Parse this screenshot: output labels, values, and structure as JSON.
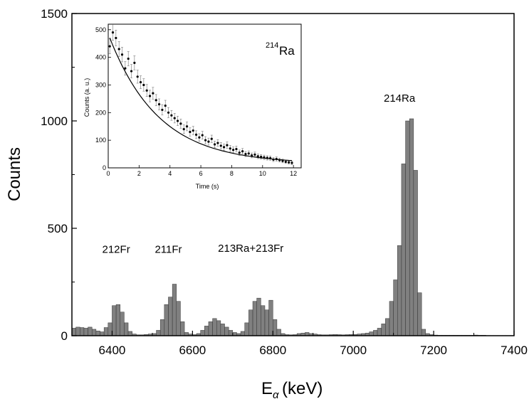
{
  "chart_data": [
    {
      "type": "bar",
      "title": "",
      "xlabel": "E",
      "xlabel_sub": "α",
      "xlabel_unit": "(keV)",
      "ylabel": "Counts",
      "xlim": [
        6300,
        7400
      ],
      "ylim": [
        0,
        1500
      ],
      "x_ticks": [
        "6400",
        "6600",
        "6800",
        "7000",
        "7200",
        "7400"
      ],
      "y_ticks": [
        "0",
        "500",
        "1000",
        "1500"
      ],
      "bin_width_keV": 10,
      "x": [
        6300,
        6310,
        6320,
        6330,
        6340,
        6350,
        6360,
        6370,
        6380,
        6390,
        6400,
        6410,
        6420,
        6430,
        6440,
        6450,
        6460,
        6470,
        6480,
        6490,
        6500,
        6510,
        6520,
        6530,
        6540,
        6550,
        6560,
        6570,
        6580,
        6590,
        6600,
        6610,
        6620,
        6630,
        6640,
        6650,
        6660,
        6670,
        6680,
        6690,
        6700,
        6710,
        6720,
        6730,
        6740,
        6750,
        6760,
        6770,
        6780,
        6790,
        6800,
        6810,
        6820,
        6830,
        6840,
        6850,
        6860,
        6870,
        6880,
        6890,
        6900,
        6910,
        6920,
        6930,
        6940,
        6950,
        6960,
        6970,
        6980,
        6990,
        7000,
        7010,
        7020,
        7030,
        7040,
        7050,
        7060,
        7070,
        7080,
        7090,
        7100,
        7110,
        7120,
        7130,
        7140,
        7150,
        7160,
        7170,
        7180,
        7190,
        7200,
        7210,
        7220,
        7230,
        7240,
        7250,
        7260,
        7270,
        7280,
        7290,
        7300,
        7310,
        7320,
        7330,
        7340,
        7350,
        7360,
        7370,
        7380,
        7390
      ],
      "values": [
        35,
        40,
        38,
        35,
        40,
        30,
        22,
        18,
        38,
        60,
        140,
        145,
        110,
        60,
        20,
        8,
        4,
        4,
        6,
        8,
        10,
        25,
        75,
        145,
        180,
        240,
        160,
        65,
        15,
        8,
        5,
        10,
        25,
        45,
        65,
        80,
        70,
        55,
        40,
        25,
        15,
        10,
        20,
        60,
        120,
        160,
        175,
        140,
        120,
        165,
        75,
        30,
        10,
        5,
        4,
        5,
        10,
        12,
        15,
        10,
        8,
        5,
        4,
        4,
        5,
        6,
        5,
        4,
        5,
        6,
        6,
        8,
        10,
        12,
        18,
        25,
        35,
        55,
        80,
        160,
        260,
        420,
        800,
        1000,
        1010,
        770,
        200,
        30,
        10,
        5,
        3,
        2,
        2,
        2,
        2,
        2,
        2,
        2,
        2,
        2,
        3,
        2,
        2,
        1,
        1,
        1,
        1,
        1,
        1,
        1
      ],
      "annotations": [
        {
          "text": "212Fr",
          "x": 6410,
          "y": 385
        },
        {
          "text": "211Fr",
          "x": 6540,
          "y": 385
        },
        {
          "text": "213Ra+213Fr",
          "x": 6745,
          "y": 390
        },
        {
          "text": "214Ra",
          "x": 7115,
          "y": 1090
        }
      ]
    },
    {
      "type": "scatter",
      "title_sup": "214",
      "title": "Ra",
      "xlabel": "Time (s)",
      "ylabel": "Counts (a. u.)",
      "xlim": [
        0,
        12.5
      ],
      "ylim": [
        0,
        520
      ],
      "x_ticks": [
        "0",
        "2",
        "4",
        "6",
        "8",
        "10",
        "12"
      ],
      "y_ticks": [
        "0",
        "100",
        "200",
        "300",
        "400",
        "500"
      ],
      "x": [
        0.1,
        0.3,
        0.5,
        0.7,
        0.9,
        1.1,
        1.3,
        1.5,
        1.7,
        1.9,
        2.1,
        2.3,
        2.5,
        2.7,
        2.9,
        3.1,
        3.3,
        3.5,
        3.7,
        3.9,
        4.1,
        4.3,
        4.5,
        4.7,
        4.9,
        5.1,
        5.3,
        5.5,
        5.7,
        5.9,
        6.1,
        6.3,
        6.5,
        6.7,
        6.9,
        7.1,
        7.3,
        7.5,
        7.7,
        7.9,
        8.1,
        8.3,
        8.5,
        8.7,
        8.9,
        9.1,
        9.3,
        9.5,
        9.7,
        9.9,
        10.1,
        10.3,
        10.5,
        10.7,
        10.9,
        11.1,
        11.3,
        11.5,
        11.7,
        11.9
      ],
      "y": [
        440,
        490,
        470,
        430,
        410,
        360,
        395,
        350,
        380,
        330,
        310,
        300,
        280,
        260,
        270,
        245,
        230,
        210,
        225,
        200,
        190,
        180,
        170,
        160,
        140,
        150,
        130,
        135,
        120,
        110,
        118,
        100,
        95,
        105,
        85,
        90,
        80,
        75,
        82,
        70,
        65,
        68,
        55,
        60,
        50,
        52,
        45,
        48,
        42,
        40,
        38,
        36,
        35,
        30,
        32,
        28,
        25,
        22,
        20,
        18
      ],
      "fit_curve": "exponential decay",
      "error_bars": true
    }
  ]
}
